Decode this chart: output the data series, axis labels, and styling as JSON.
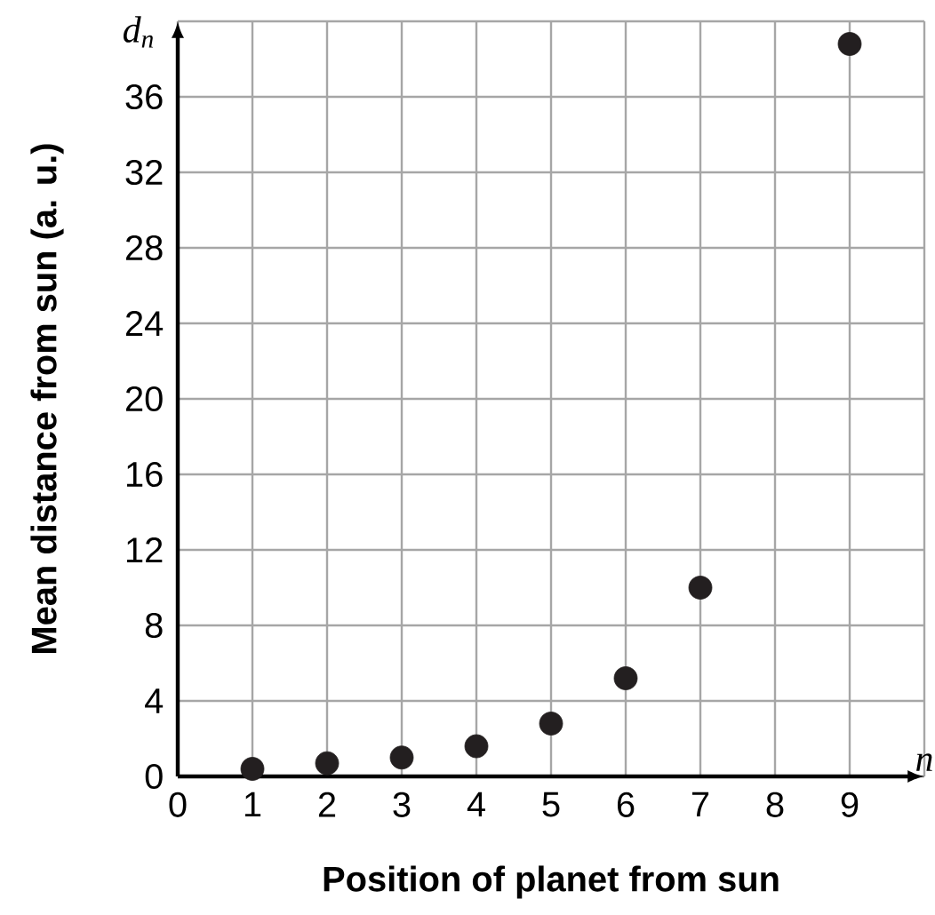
{
  "chart_data": {
    "type": "scatter",
    "xlabel": "Position of planet from sun",
    "ylabel": "Mean distance from sun (a. u.)",
    "annotations": [
      "d$_{n}$",
      "n"
    ],
    "x": [
      1,
      2,
      3,
      4,
      5,
      6,
      7,
      9
    ],
    "series": [
      {
        "color": "#231f20",
        "values": [
          0.4,
          0.7,
          1.0,
          1.6,
          2.8,
          5.2,
          10.0,
          38.8
        ]
      }
    ],
    "xlim": [
      0,
      10
    ],
    "ylim": [
      0,
      40
    ],
    "xticks": [
      0,
      1,
      2,
      3,
      4,
      5,
      6,
      7,
      8,
      9,
      {
        "value": 10,
        "label": null
      }
    ],
    "yticks": [
      0,
      4,
      8,
      12,
      16,
      20,
      24,
      28,
      32,
      36,
      {
        "value": 40,
        "label": null
      }
    ],
    "grid": true
  }
}
